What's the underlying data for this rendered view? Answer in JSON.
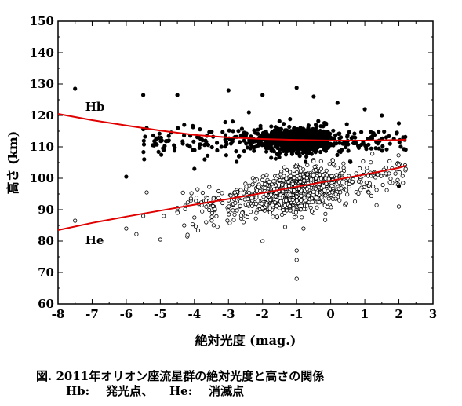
{
  "chart_data": {
    "type": "scatter",
    "title": "",
    "xlabel": "絶対光度 (mag.)",
    "ylabel": "高さ (km)",
    "xlim": [
      -8,
      3
    ],
    "ylim": [
      60,
      150
    ],
    "x_ticks": [
      -8,
      -7,
      -6,
      -5,
      -4,
      -3,
      -2,
      -1,
      0,
      1,
      2,
      3
    ],
    "y_ticks": [
      60,
      70,
      80,
      90,
      100,
      110,
      120,
      130,
      140,
      150
    ],
    "x_tick_labels": [
      "-8",
      "-7",
      "-6",
      "-5",
      "-4",
      "-3",
      "-2",
      "-1",
      "0",
      "1",
      "2",
      "3"
    ],
    "y_tick_labels": [
      "60",
      "70",
      "80",
      "90",
      "100",
      "110",
      "120",
      "130",
      "140",
      "150"
    ],
    "grid": false,
    "legend": "none",
    "series": [
      {
        "name": "Hb",
        "marker": "filled-circle",
        "color": "#000000",
        "cloud": {
          "x_range": [
            -5.5,
            2.2
          ],
          "y_center": 112,
          "y_spread": 3.5,
          "count": 900
        },
        "points": [
          [
            -7.5,
            128.5
          ],
          [
            -6.0,
            100.5
          ],
          [
            -5.5,
            126.5
          ],
          [
            -5.4,
            116
          ],
          [
            -4.5,
            126.5
          ],
          [
            -4.3,
            117
          ],
          [
            -3.0,
            128
          ],
          [
            -2.4,
            121
          ],
          [
            -2.0,
            126.5
          ],
          [
            -1.0,
            128.8
          ],
          [
            -0.5,
            126
          ],
          [
            0.2,
            124
          ],
          [
            1.0,
            122
          ],
          [
            1.5,
            120
          ],
          [
            2.0,
            117.5
          ],
          [
            2.0,
            97.5
          ],
          [
            -3.7,
            106
          ],
          [
            -4.0,
            103
          ]
        ]
      },
      {
        "name": "He",
        "marker": "open-circle",
        "color": "#000000",
        "cloud": {
          "x_range": [
            -4.5,
            2.2
          ],
          "y_center": 97,
          "y_spread": 4.5,
          "count": 1000
        },
        "points": [
          [
            -7.5,
            86.5
          ],
          [
            -6.0,
            84
          ],
          [
            -5.7,
            82.2
          ],
          [
            -5.5,
            88
          ],
          [
            -5.4,
            95.5
          ],
          [
            -5.0,
            80.5
          ],
          [
            -4.9,
            88
          ],
          [
            -4.3,
            85
          ],
          [
            -4.2,
            82
          ],
          [
            -4.0,
            87.5
          ],
          [
            -2.0,
            80
          ],
          [
            -1.0,
            68
          ],
          [
            -1.0,
            77
          ],
          [
            -1.0,
            74
          ],
          [
            -0.8,
            84
          ],
          [
            2.0,
            91
          ],
          [
            2.2,
            103
          ]
        ]
      },
      {
        "name": "Hb fit",
        "type": "line",
        "color": "#e00000",
        "x": [
          -8,
          -7,
          -6,
          -5,
          -4,
          -3,
          -2,
          -1,
          0,
          1,
          2,
          2.2
        ],
        "y": [
          120.5,
          118.5,
          116.8,
          115.2,
          113.8,
          113.0,
          112.5,
          112.2,
          112.0,
          112.0,
          112.2,
          112.3
        ]
      },
      {
        "name": "He fit",
        "type": "line",
        "color": "#e00000",
        "x": [
          -8,
          -7,
          -6,
          -5,
          -4,
          -3,
          -2,
          -1,
          0,
          1,
          2,
          2.2
        ],
        "y": [
          83.5,
          85.8,
          87.8,
          89.7,
          91.6,
          93.4,
          95.3,
          97.3,
          99.2,
          101.2,
          103.3,
          104.0
        ]
      }
    ],
    "annotations": [
      {
        "text": "Hb",
        "x": -7.2,
        "y": 121.5
      },
      {
        "text": "He",
        "x": -7.2,
        "y": 79
      }
    ]
  },
  "caption": {
    "line1": "図. 2011年オリオン座流星群の絶対光度と高さの関係",
    "line2": "Hb:    発光点、    He:    消滅点"
  }
}
